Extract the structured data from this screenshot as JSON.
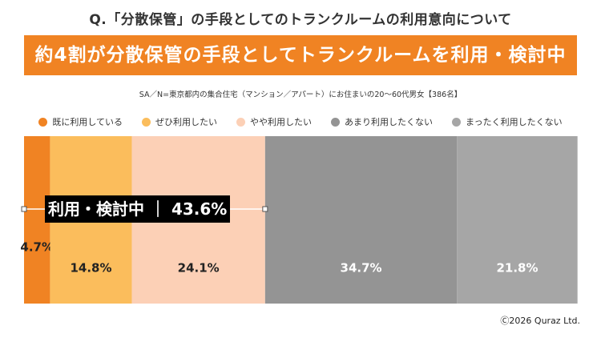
{
  "question": "Q.「分散保管」の手段としてのトランクルームの利用意向について",
  "headline": "約4割が分散保管の手段としてトランクルームを利用・検討中",
  "survey_note": "SA／N=東京都内の集合住宅（マンション／アパート）にお住まいの20～60代男女【386名】",
  "bracket": {
    "label": "利用・検討中",
    "separator": "｜",
    "value": "43.6%"
  },
  "copyright": "Ⓒ2026 Quraz Ltd.",
  "chart_data": {
    "type": "bar",
    "orientation": "horizontal-stacked-100",
    "categories": [
      "既に利用している",
      "ぜひ利用したい",
      "やや利用したい",
      "あまり利用したくない",
      "まったく利用したくない"
    ],
    "values": [
      4.7,
      14.8,
      24.1,
      34.7,
      21.8
    ],
    "labels": [
      "4.7%",
      "14.8%",
      "24.1%",
      "34.7%",
      "21.8%"
    ],
    "colors": [
      "#f08323",
      "#fbbd5c",
      "#fcd0b6",
      "#949494",
      "#a6a6a6"
    ],
    "label_colors": [
      "#222222",
      "#222222",
      "#222222",
      "#ffffff",
      "#ffffff"
    ],
    "xlim": [
      0,
      100
    ],
    "legend_position": "top",
    "grid": false
  }
}
